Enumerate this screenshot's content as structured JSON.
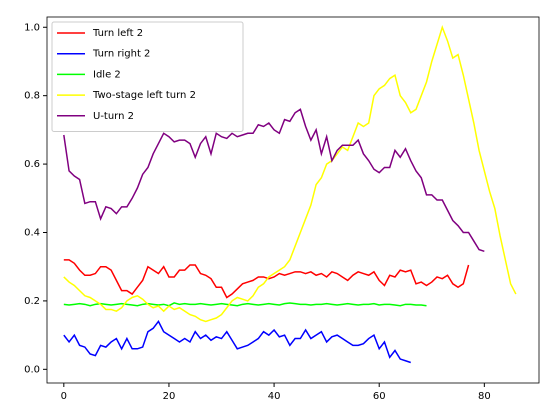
{
  "chart_data": {
    "type": "line",
    "xlim": [
      -3.2,
      90.4
    ],
    "ylim": [
      -0.04,
      1.03
    ],
    "xticks": [
      0,
      20,
      40,
      60,
      80
    ],
    "yticks": [
      {
        "value": 0,
        "label": "0.0"
      },
      {
        "value": 0.2,
        "label": "0.2"
      },
      {
        "value": 0.4,
        "label": "0.4"
      },
      {
        "value": 0.6,
        "label": "0.6"
      },
      {
        "value": 0.8,
        "label": "0.8"
      },
      {
        "value": 1.0,
        "label": "1.0"
      }
    ],
    "grid": false,
    "legend": "upper left",
    "series": [
      {
        "name": "Turn left 2",
        "color": "#ff0000",
        "values": [
          0.32,
          0.32,
          0.31,
          0.29,
          0.275,
          0.275,
          0.28,
          0.3,
          0.3,
          0.29,
          0.26,
          0.23,
          0.23,
          0.22,
          0.24,
          0.26,
          0.3,
          0.29,
          0.28,
          0.3,
          0.27,
          0.27,
          0.29,
          0.29,
          0.305,
          0.305,
          0.28,
          0.275,
          0.265,
          0.24,
          0.24,
          0.21,
          0.22,
          0.235,
          0.25,
          0.255,
          0.26,
          0.27,
          0.27,
          0.265,
          0.27,
          0.28,
          0.275,
          0.28,
          0.285,
          0.285,
          0.28,
          0.285,
          0.275,
          0.28,
          0.27,
          0.285,
          0.28,
          0.27,
          0.26,
          0.275,
          0.285,
          0.28,
          0.275,
          0.285,
          0.26,
          0.245,
          0.275,
          0.27,
          0.29,
          0.285,
          0.29,
          0.25,
          0.255,
          0.245,
          0.255,
          0.27,
          0.265,
          0.275,
          0.25,
          0.24,
          0.25,
          0.305
        ]
      },
      {
        "name": "Turn right 2",
        "color": "#0000ff",
        "values": [
          0.1,
          0.08,
          0.1,
          0.07,
          0.065,
          0.045,
          0.04,
          0.07,
          0.065,
          0.08,
          0.09,
          0.06,
          0.09,
          0.06,
          0.06,
          0.065,
          0.11,
          0.12,
          0.14,
          0.11,
          0.1,
          0.09,
          0.08,
          0.09,
          0.08,
          0.11,
          0.09,
          0.1,
          0.085,
          0.095,
          0.09,
          0.11,
          0.085,
          0.06,
          0.065,
          0.07,
          0.08,
          0.09,
          0.11,
          0.1,
          0.115,
          0.095,
          0.1,
          0.07,
          0.09,
          0.09,
          0.115,
          0.09,
          0.1,
          0.11,
          0.08,
          0.095,
          0.1,
          0.09,
          0.08,
          0.07,
          0.07,
          0.075,
          0.09,
          0.1,
          0.06,
          0.08,
          0.035,
          0.055,
          0.03,
          0.025,
          0.02
        ]
      },
      {
        "name": "Idle 2",
        "color": "#00ff00",
        "values": [
          0.19,
          0.188,
          0.19,
          0.192,
          0.19,
          0.186,
          0.19,
          0.192,
          0.19,
          0.188,
          0.19,
          0.192,
          0.19,
          0.188,
          0.186,
          0.19,
          0.192,
          0.19,
          0.188,
          0.19,
          0.186,
          0.194,
          0.19,
          0.192,
          0.19,
          0.19,
          0.192,
          0.19,
          0.188,
          0.19,
          0.192,
          0.19,
          0.188,
          0.186,
          0.19,
          0.192,
          0.19,
          0.188,
          0.19,
          0.192,
          0.19,
          0.188,
          0.192,
          0.194,
          0.192,
          0.19,
          0.19,
          0.188,
          0.19,
          0.19,
          0.192,
          0.19,
          0.188,
          0.19,
          0.192,
          0.19,
          0.188,
          0.19,
          0.19,
          0.192,
          0.188,
          0.19,
          0.19,
          0.188,
          0.186,
          0.19,
          0.19,
          0.188,
          0.188,
          0.186
        ]
      },
      {
        "name": "Two-stage left turn 2",
        "color": "#ffff00",
        "values": [
          0.27,
          0.255,
          0.245,
          0.23,
          0.215,
          0.21,
          0.2,
          0.19,
          0.175,
          0.175,
          0.17,
          0.18,
          0.2,
          0.21,
          0.215,
          0.205,
          0.19,
          0.18,
          0.185,
          0.17,
          0.185,
          0.175,
          0.18,
          0.17,
          0.16,
          0.155,
          0.145,
          0.14,
          0.145,
          0.15,
          0.16,
          0.18,
          0.2,
          0.21,
          0.205,
          0.2,
          0.215,
          0.24,
          0.25,
          0.27,
          0.28,
          0.29,
          0.3,
          0.32,
          0.36,
          0.4,
          0.44,
          0.48,
          0.54,
          0.56,
          0.6,
          0.61,
          0.63,
          0.65,
          0.64,
          0.68,
          0.72,
          0.71,
          0.72,
          0.8,
          0.82,
          0.83,
          0.85,
          0.86,
          0.8,
          0.78,
          0.75,
          0.76,
          0.8,
          0.84,
          0.9,
          0.95,
          1.0,
          0.96,
          0.91,
          0.92,
          0.86,
          0.79,
          0.72,
          0.64,
          0.58,
          0.52,
          0.47,
          0.39,
          0.32,
          0.25,
          0.22
        ]
      },
      {
        "name": "U-turn 2",
        "color": "#800080",
        "values": [
          0.685,
          0.58,
          0.565,
          0.555,
          0.485,
          0.49,
          0.49,
          0.44,
          0.475,
          0.47,
          0.455,
          0.475,
          0.475,
          0.5,
          0.53,
          0.57,
          0.59,
          0.63,
          0.66,
          0.69,
          0.68,
          0.665,
          0.67,
          0.67,
          0.66,
          0.62,
          0.66,
          0.68,
          0.63,
          0.69,
          0.68,
          0.675,
          0.69,
          0.68,
          0.685,
          0.69,
          0.69,
          0.715,
          0.71,
          0.72,
          0.7,
          0.69,
          0.73,
          0.725,
          0.75,
          0.76,
          0.71,
          0.67,
          0.7,
          0.63,
          0.68,
          0.61,
          0.64,
          0.655,
          0.655,
          0.655,
          0.67,
          0.63,
          0.61,
          0.585,
          0.575,
          0.59,
          0.59,
          0.64,
          0.62,
          0.645,
          0.61,
          0.58,
          0.56,
          0.51,
          0.51,
          0.495,
          0.495,
          0.465,
          0.435,
          0.42,
          0.4,
          0.4,
          0.375,
          0.35,
          0.345
        ]
      }
    ]
  }
}
